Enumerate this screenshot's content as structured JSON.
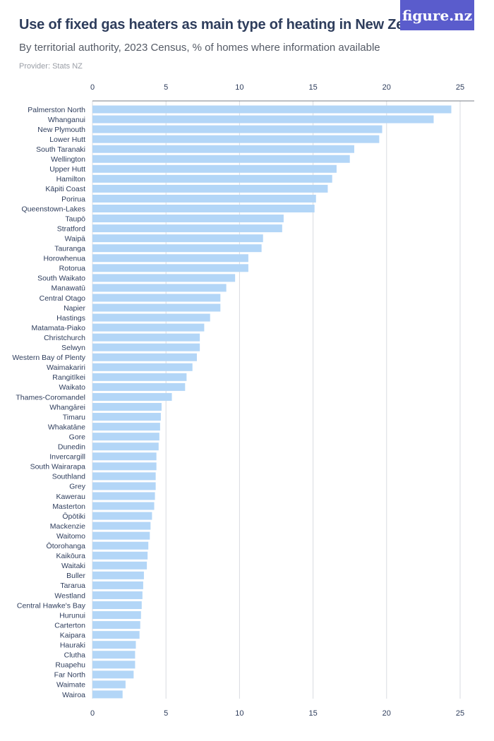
{
  "header": {
    "title": "Use of fixed gas heaters as main type of heating in New Zealand",
    "subtitle": "By territorial authority, 2023 Census, % of homes where information available",
    "provider": "Provider: Stats NZ",
    "logo_text": "figure.nz"
  },
  "colors": {
    "bar": "#b3d6f7",
    "grid": "#d8dbe0",
    "axis_line": "#7a7f87",
    "label": "#2e3d5c"
  },
  "chart_data": {
    "type": "bar",
    "orientation": "horizontal",
    "title": "Use of fixed gas heaters as main type of heating in New Zealand",
    "subtitle": "By territorial authority, 2023 Census, % of homes where information available",
    "xlim": [
      0,
      25
    ],
    "xticks": [
      0,
      5,
      10,
      15,
      20,
      25
    ],
    "grid": true,
    "categories": [
      "Palmerston North",
      "Whanganui",
      "New Plymouth",
      "Lower Hutt",
      "South Taranaki",
      "Wellington",
      "Upper Hutt",
      "Hamilton",
      "Kāpiti Coast",
      "Porirua",
      "Queenstown-Lakes",
      "Taupō",
      "Stratford",
      "Waipā",
      "Tauranga",
      "Horowhenua",
      "Rotorua",
      "South Waikato",
      "Manawatū",
      "Central Otago",
      "Napier",
      "Hastings",
      "Matamata-Piako",
      "Christchurch",
      "Selwyn",
      "Western Bay of Plenty",
      "Waimakariri",
      "Rangitīkei",
      "Waikato",
      "Thames-Coromandel",
      "Whangārei",
      "Timaru",
      "Whakatāne",
      "Gore",
      "Dunedin",
      "Invercargill",
      "South Wairarapa",
      "Southland",
      "Grey",
      "Kawerau",
      "Masterton",
      "Ōpōtiki",
      "Mackenzie",
      "Waitomo",
      "Ōtorohanga",
      "Kaikōura",
      "Waitaki",
      "Buller",
      "Tararua",
      "Westland",
      "Central Hawke's Bay",
      "Hurunui",
      "Carterton",
      "Kaipara",
      "Hauraki",
      "Clutha",
      "Ruapehu",
      "Far North",
      "Waimate",
      "Wairoa"
    ],
    "values": [
      24.4,
      23.2,
      19.7,
      19.5,
      17.8,
      17.5,
      16.6,
      16.3,
      16.0,
      15.2,
      15.1,
      13.0,
      12.9,
      11.6,
      11.5,
      10.6,
      10.6,
      9.7,
      9.1,
      8.7,
      8.7,
      8.0,
      7.6,
      7.3,
      7.3,
      7.1,
      6.8,
      6.4,
      6.3,
      5.4,
      4.7,
      4.65,
      4.6,
      4.55,
      4.5,
      4.35,
      4.35,
      4.3,
      4.3,
      4.25,
      4.2,
      4.05,
      3.95,
      3.9,
      3.8,
      3.75,
      3.7,
      3.5,
      3.45,
      3.4,
      3.35,
      3.3,
      3.25,
      3.2,
      2.95,
      2.9,
      2.9,
      2.8,
      2.25,
      2.05
    ]
  }
}
